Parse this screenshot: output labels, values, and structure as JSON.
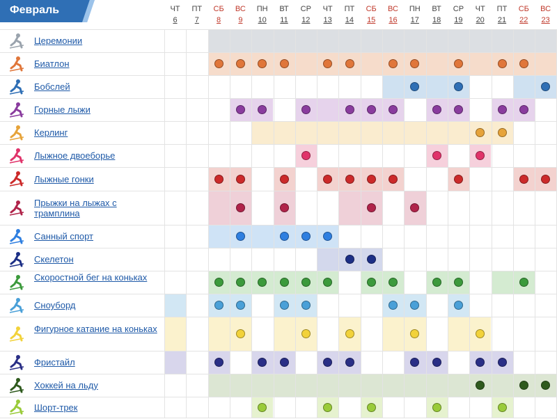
{
  "month": "Февраль",
  "days": [
    {
      "dw": "ЧТ",
      "dn": "6",
      "we": false
    },
    {
      "dw": "ПТ",
      "dn": "7",
      "we": false
    },
    {
      "dw": "СБ",
      "dn": "8",
      "we": true
    },
    {
      "dw": "ВС",
      "dn": "9",
      "we": true
    },
    {
      "dw": "ПН",
      "dn": "10",
      "we": false
    },
    {
      "dw": "ВТ",
      "dn": "11",
      "we": false
    },
    {
      "dw": "СР",
      "dn": "12",
      "we": false
    },
    {
      "dw": "ЧТ",
      "dn": "13",
      "we": false
    },
    {
      "dw": "ПТ",
      "dn": "14",
      "we": false
    },
    {
      "dw": "СБ",
      "dn": "15",
      "we": true
    },
    {
      "dw": "ВС",
      "dn": "16",
      "we": true
    },
    {
      "dw": "ПН",
      "dn": "17",
      "we": false
    },
    {
      "dw": "ВТ",
      "dn": "18",
      "we": false
    },
    {
      "dw": "СР",
      "dn": "19",
      "we": false
    },
    {
      "dw": "ЧТ",
      "dn": "20",
      "we": false
    },
    {
      "dw": "ПТ",
      "dn": "21",
      "we": false
    },
    {
      "dw": "СБ",
      "dn": "22",
      "we": true
    },
    {
      "dw": "ВС",
      "dn": "23",
      "we": true
    }
  ],
  "sports": [
    {
      "name": "Церемонии",
      "slug": "ceremonies",
      "icon": "torch-icon",
      "color": "#9aa3ad",
      "bg": "#dcdfe3",
      "shade": [
        [
          2,
          18
        ]
      ],
      "events": []
    },
    {
      "name": "Биатлон",
      "slug": "biathlon",
      "icon": "biathlon-icon",
      "color": "#e0763a",
      "bg": "#f6dccb",
      "shade": [
        [
          2,
          18
        ]
      ],
      "events": [
        2,
        3,
        4,
        5,
        7,
        8,
        10,
        11,
        13,
        15,
        16
      ]
    },
    {
      "name": "Бобслей",
      "slug": "bobsleigh",
      "icon": "bobsleigh-icon",
      "color": "#2f6fb5",
      "bg": "#cfe1f1",
      "shade": [
        [
          10,
          14
        ],
        [
          16,
          18
        ]
      ],
      "events": [
        11,
        13,
        17
      ]
    },
    {
      "name": "Горные лыжи",
      "slug": "alpine-skiing",
      "icon": "alpine-skiing-icon",
      "color": "#8a3c9e",
      "bg": "#e6d3ec",
      "shade": [
        [
          3,
          5
        ],
        [
          6,
          11
        ],
        [
          12,
          14
        ],
        [
          15,
          17
        ]
      ],
      "events": [
        3,
        4,
        6,
        8,
        9,
        10,
        12,
        13,
        15,
        16
      ]
    },
    {
      "name": "Керлинг",
      "slug": "curling",
      "icon": "curling-icon",
      "color": "#e6a33a",
      "bg": "#faeccf",
      "shade": [
        [
          4,
          16
        ]
      ],
      "events": [
        14,
        15
      ]
    },
    {
      "name": "Лыжное двоеборье",
      "slug": "nordic-combined",
      "icon": "nordic-combined-icon",
      "color": "#e0336a",
      "bg": "#f6d0dc",
      "shade": [
        [
          6,
          7
        ],
        [
          12,
          13
        ],
        [
          14,
          15
        ]
      ],
      "events": [
        6,
        12,
        14
      ]
    },
    {
      "name": "Лыжные гонки",
      "slug": "cross-country",
      "icon": "cross-country-icon",
      "color": "#cc2a2a",
      "bg": "#f3d2cf",
      "shade": [
        [
          2,
          4
        ],
        [
          5,
          6
        ],
        [
          7,
          11
        ],
        [
          13,
          14
        ],
        [
          16,
          18
        ]
      ],
      "events": [
        2,
        3,
        5,
        7,
        8,
        9,
        10,
        13,
        16,
        17
      ]
    },
    {
      "name": "Прыжки на лыжах с трамплина",
      "slug": "ski-jumping",
      "icon": "ski-jumping-icon",
      "color": "#b0244a",
      "bg": "#efd0d8",
      "shade": [
        [
          2,
          4
        ],
        [
          5,
          6
        ],
        [
          8,
          10
        ],
        [
          11,
          12
        ]
      ],
      "events": [
        3,
        5,
        9,
        11
      ]
    },
    {
      "name": "Санный спорт",
      "slug": "luge",
      "icon": "luge-icon",
      "color": "#2f7fe0",
      "bg": "#cfe3f6",
      "shade": [
        [
          2,
          8
        ]
      ],
      "events": [
        3,
        5,
        6,
        7
      ]
    },
    {
      "name": "Скелетон",
      "slug": "skeleton",
      "icon": "skeleton-icon",
      "color": "#1c2f86",
      "bg": "#d3d8ec",
      "shade": [
        [
          7,
          10
        ]
      ],
      "events": [
        8,
        9
      ]
    },
    {
      "name": "Скоростной бег на коньках",
      "slug": "speed-skating",
      "icon": "speed-skating-icon",
      "color": "#3c9a3c",
      "bg": "#d4ebd1",
      "shade": [
        [
          2,
          8
        ],
        [
          9,
          11
        ],
        [
          12,
          14
        ],
        [
          15,
          17
        ]
      ],
      "events": [
        2,
        3,
        4,
        5,
        6,
        7,
        9,
        10,
        12,
        13,
        16
      ]
    },
    {
      "name": "Сноуборд",
      "slug": "snowboard",
      "icon": "snowboard-icon",
      "color": "#4aa0d8",
      "bg": "#d2e7f4",
      "shade": [
        [
          0,
          1
        ],
        [
          2,
          4
        ],
        [
          5,
          7
        ],
        [
          10,
          12
        ],
        [
          13,
          14
        ]
      ],
      "events": [
        2,
        3,
        5,
        6,
        10,
        11,
        13
      ]
    },
    {
      "name": "Фигурное катание на коньках",
      "slug": "figure-skating",
      "icon": "figure-skating-icon",
      "color": "#f2d23a",
      "bg": "#fbf2cd",
      "shade": [
        [
          0,
          1
        ],
        [
          2,
          4
        ],
        [
          5,
          7
        ],
        [
          8,
          9
        ],
        [
          10,
          12
        ],
        [
          13,
          15
        ]
      ],
      "events": [
        3,
        6,
        8,
        11,
        14
      ]
    },
    {
      "name": "Фристайл",
      "slug": "freestyle",
      "icon": "freestyle-icon",
      "color": "#2a2f86",
      "bg": "#d8d6ec",
      "shade": [
        [
          0,
          1
        ],
        [
          2,
          3
        ],
        [
          4,
          6
        ],
        [
          7,
          9
        ],
        [
          11,
          13
        ],
        [
          14,
          16
        ]
      ],
      "events": [
        2,
        4,
        5,
        7,
        8,
        11,
        12,
        14,
        15
      ]
    },
    {
      "name": "Хоккей на льду",
      "slug": "ice-hockey",
      "icon": "ice-hockey-icon",
      "color": "#2f5a1e",
      "bg": "#dce6d3",
      "shade": [
        [
          2,
          18
        ]
      ],
      "events": [
        14,
        16,
        17
      ]
    },
    {
      "name": "Шорт-трек",
      "slug": "short-track",
      "icon": "short-track-icon",
      "color": "#9acb3a",
      "bg": "#e6f2cf",
      "shade": [
        [
          4,
          5
        ],
        [
          7,
          8
        ],
        [
          9,
          10
        ],
        [
          12,
          13
        ],
        [
          15,
          16
        ]
      ],
      "events": [
        4,
        7,
        9,
        12,
        15
      ]
    }
  ]
}
